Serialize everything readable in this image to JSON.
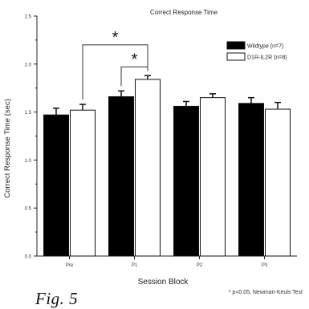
{
  "chart_data": {
    "type": "bar",
    "title": "Correct Response Time",
    "xlabel": "Session Block",
    "ylabel": "Correct Response Time (sec)",
    "ylim": [
      0.0,
      2.5
    ],
    "yticks": [
      "0.0",
      "0.5",
      "1.0",
      "1.5",
      "2.0",
      "2.5"
    ],
    "categories": [
      "Pre",
      "P1",
      "P2",
      "P3"
    ],
    "series": [
      {
        "name": "Wildtype (n=7)",
        "color": "#000000",
        "values": [
          1.47,
          1.66,
          1.56,
          1.59
        ],
        "errors": [
          0.07,
          0.06,
          0.05,
          0.06
        ]
      },
      {
        "name": "D1R-IL2R (n=8)",
        "color": "#ffffff",
        "values": [
          1.52,
          1.84,
          1.65,
          1.53
        ],
        "errors": [
          0.06,
          0.04,
          0.04,
          0.07
        ]
      }
    ],
    "legend_position": "top-right",
    "significance": [
      {
        "label": "*",
        "from": [
          0,
          1
        ],
        "to": [
          1,
          1
        ]
      },
      {
        "label": "*",
        "from": [
          1,
          0
        ],
        "to": [
          1,
          1
        ]
      }
    ]
  },
  "caption": "Fig. 5",
  "footnote": "* p<0.05, Newman-Keuls Test"
}
